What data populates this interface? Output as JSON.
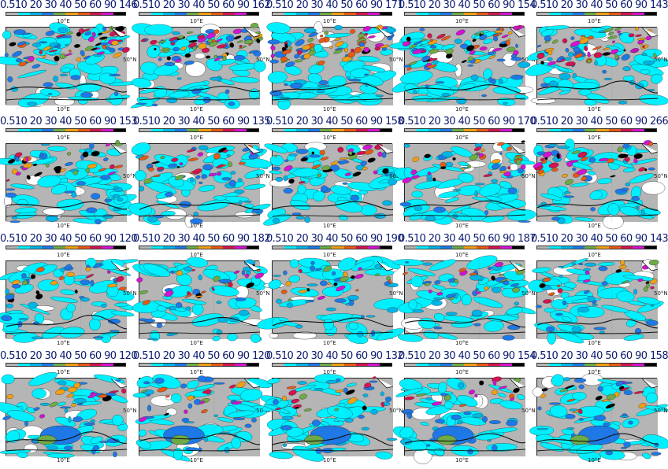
{
  "colorbar": {
    "colors": [
      "#b5b5b5",
      "#00f0ff",
      "#00b4e6",
      "#1e78e6",
      "#6eaa46",
      "#f0a014",
      "#e65a14",
      "#d21450",
      "#d214d2",
      "#000000"
    ]
  },
  "lon_label": "10°E",
  "lat_label": "50°N",
  "panels": [
    {
      "label": "0.510 20 30 40 50 60 90 146",
      "intensity": 1.0,
      "row": 0
    },
    {
      "label": "0.510 20 30 40 50 60 90 162",
      "intensity": 1.0,
      "row": 0
    },
    {
      "label": "0.510 20 30 40 50 60 90 171",
      "intensity": 1.0,
      "row": 0
    },
    {
      "label": "0.510 20 30 40 50 60 90 154",
      "intensity": 1.0,
      "row": 0
    },
    {
      "label": "0.510 20 30 40 50 60 90 143",
      "intensity": 1.0,
      "row": 0
    },
    {
      "label": "0.510 20 30 40 50 60 90 153",
      "intensity": 0.6,
      "row": 1
    },
    {
      "label": "0.510 20 30 40 50 60 90 135",
      "intensity": 0.6,
      "row": 1
    },
    {
      "label": "0.510 20 30 40 50 60 90 158",
      "intensity": 0.6,
      "row": 1
    },
    {
      "label": "0.510 20 30 40 50 60 90 170",
      "intensity": 0.6,
      "row": 1
    },
    {
      "label": "0.510 20 30 40 50 60 90 266",
      "intensity": 0.6,
      "row": 1
    },
    {
      "label": "0.510 20 30 40 50 60 90 120",
      "intensity": 0.4,
      "row": 2
    },
    {
      "label": "0.510 20 30 40 50 60 90 182",
      "intensity": 0.4,
      "row": 2
    },
    {
      "label": "0.510 20 30 40 50 60 90 190",
      "intensity": 0.4,
      "row": 2
    },
    {
      "label": "0.510 20 30 40 50 60 90 187",
      "intensity": 0.4,
      "row": 2
    },
    {
      "label": "0.510 20 30 40 50 60 90 143",
      "intensity": 0.4,
      "row": 2
    },
    {
      "label": "0.510 20 30 40 50 60 90 120",
      "intensity": 0.3,
      "row": 3
    },
    {
      "label": "0.510 20 30 40 50 60 90 120",
      "intensity": 0.3,
      "row": 3
    },
    {
      "label": "0.510 20 30 40 50 60 90 132",
      "intensity": 0.3,
      "row": 3
    },
    {
      "label": "0.510 20 30 40 50 60 90 154",
      "intensity": 0.3,
      "row": 3
    },
    {
      "label": "0.510 20 30 40 50 60 90 158",
      "intensity": 0.3,
      "row": 3
    }
  ]
}
